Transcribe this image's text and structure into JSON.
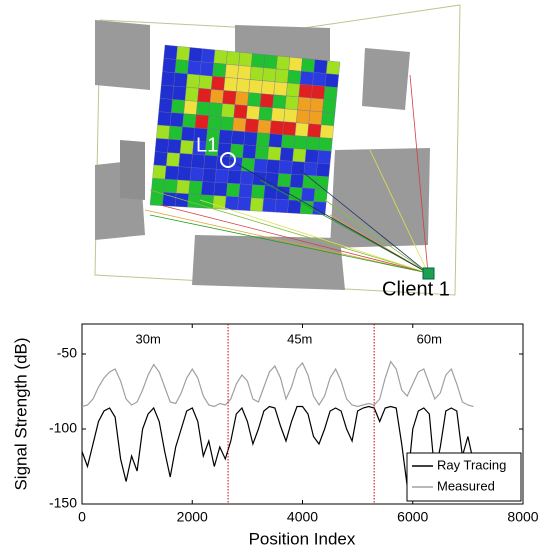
{
  "scene": {
    "labels": [
      "L1",
      "Client 1"
    ]
  },
  "chart_data": {
    "type": "line",
    "x_label": "Position Index",
    "y_label": "Signal Strength (dB)",
    "xlim": [
      0,
      8000
    ],
    "xticks": [
      0,
      2000,
      4000,
      6000,
      8000
    ],
    "ylim": [
      -150,
      -30
    ],
    "yticks": [
      -150,
      -100,
      -50
    ],
    "x": [
      0,
      100,
      200,
      300,
      400,
      500,
      600,
      700,
      800,
      900,
      1000,
      1100,
      1200,
      1300,
      1400,
      1500,
      1600,
      1700,
      1800,
      1900,
      2000,
      2100,
      2200,
      2300,
      2400,
      2500,
      2600,
      2700,
      2800,
      2900,
      3000,
      3100,
      3200,
      3300,
      3400,
      3500,
      3600,
      3700,
      3800,
      3900,
      4000,
      4100,
      4200,
      4300,
      4400,
      4500,
      4600,
      4700,
      4800,
      4900,
      5000,
      5100,
      5200,
      5300,
      5400,
      5500,
      5600,
      5700,
      5800,
      5900,
      6000,
      6100,
      6200,
      6300,
      6400,
      6500,
      6600,
      6700,
      6800,
      6900,
      7000,
      7100
    ],
    "series": [
      {
        "name": "Ray Tracing",
        "color": "#000000",
        "values": [
          -115,
          -125,
          -110,
          -95,
          -88,
          -86,
          -92,
          -120,
          -135,
          -118,
          -128,
          -100,
          -90,
          -86,
          -95,
          -115,
          -132,
          -112,
          -100,
          -88,
          -86,
          -95,
          -118,
          -108,
          -125,
          -112,
          -120,
          -108,
          -90,
          -86,
          -95,
          -110,
          -100,
          -88,
          -85,
          -86,
          -98,
          -108,
          -95,
          -85,
          -85,
          -90,
          -105,
          -110,
          -100,
          -88,
          -86,
          -88,
          -100,
          -108,
          -88,
          -86,
          -85,
          -86,
          -95,
          -86,
          -85,
          -86,
          -110,
          -138,
          -100,
          -88,
          -86,
          -90,
          -130,
          -112,
          -88,
          -86,
          -88,
          -118,
          -105,
          -122
        ]
      },
      {
        "name": "Measured",
        "color": "#a0a0a0",
        "values": [
          -85,
          -84,
          -80,
          -72,
          -66,
          -62,
          -60,
          -68,
          -80,
          -84,
          -82,
          -74,
          -64,
          -57,
          -62,
          -72,
          -82,
          -83,
          -76,
          -66,
          -60,
          -66,
          -78,
          -84,
          -85,
          -83,
          -84,
          -80,
          -70,
          -64,
          -68,
          -80,
          -82,
          -72,
          -62,
          -58,
          -66,
          -80,
          -72,
          -60,
          -56,
          -64,
          -78,
          -84,
          -78,
          -66,
          -60,
          -68,
          -80,
          -84,
          -85,
          -84,
          -83,
          -84,
          -80,
          -66,
          -55,
          -60,
          -74,
          -78,
          -70,
          -62,
          -60,
          -70,
          -80,
          -76,
          -64,
          -60,
          -70,
          -82,
          -84,
          -85
        ]
      }
    ],
    "vlines": {
      "color": "#cc0000",
      "x": [
        2650,
        5300
      ]
    },
    "annotations": [
      {
        "text": "30m",
        "x": 1200
      },
      {
        "text": "45m",
        "x": 3950
      },
      {
        "text": "60m",
        "x": 6300
      }
    ],
    "legend": "lower right"
  }
}
